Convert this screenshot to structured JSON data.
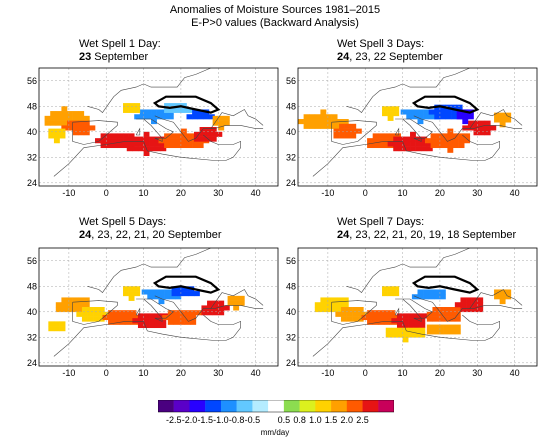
{
  "header": {
    "title": "Anomalies of Moisture Sources 1981–2015",
    "subtitle": "E-P>0 values (Backward Analysis)"
  },
  "panels": [
    {
      "line1": "Wet Spell 1 Day:",
      "bold": "23",
      "rest": " September"
    },
    {
      "line1": "Wet Spell 3 Days:",
      "bold": "24",
      "rest": ", 23, 22 September"
    },
    {
      "line1": "Wet Spell 5 Days:",
      "bold": "24",
      "rest": ", 23, 22, 21, 20 September"
    },
    {
      "line1": "Wet Spell 7 Days:",
      "bold": "24",
      "rest": ", 23, 22, 21, 20, 19, 18 September"
    }
  ],
  "colorbar": {
    "units": "mm/day",
    "labels": [
      "-2.5",
      "-2.0",
      "-1.5",
      "-1.0",
      "-0.8",
      "-0.5",
      "0.5",
      "0.8",
      "1.0",
      "1.5",
      "2.0",
      "2.5"
    ],
    "colors": [
      "#4a0080",
      "#5a00c8",
      "#2800ff",
      "#0046ff",
      "#1e90ff",
      "#62c8ff",
      "#b4ecff",
      "#ffffff",
      "#8cdc50",
      "#dcf01e",
      "#ffd200",
      "#ffa000",
      "#ff5a00",
      "#e61414",
      "#c8005a"
    ]
  },
  "chart_data": {
    "type": "heatmap",
    "x_ticks": [
      "-10",
      "0",
      "10",
      "20",
      "30",
      "40"
    ],
    "y_ticks": [
      "56",
      "48",
      "40",
      "32",
      "24"
    ],
    "xlim": [
      -18,
      46
    ],
    "ylim": [
      23,
      60
    ],
    "grid": true
  }
}
